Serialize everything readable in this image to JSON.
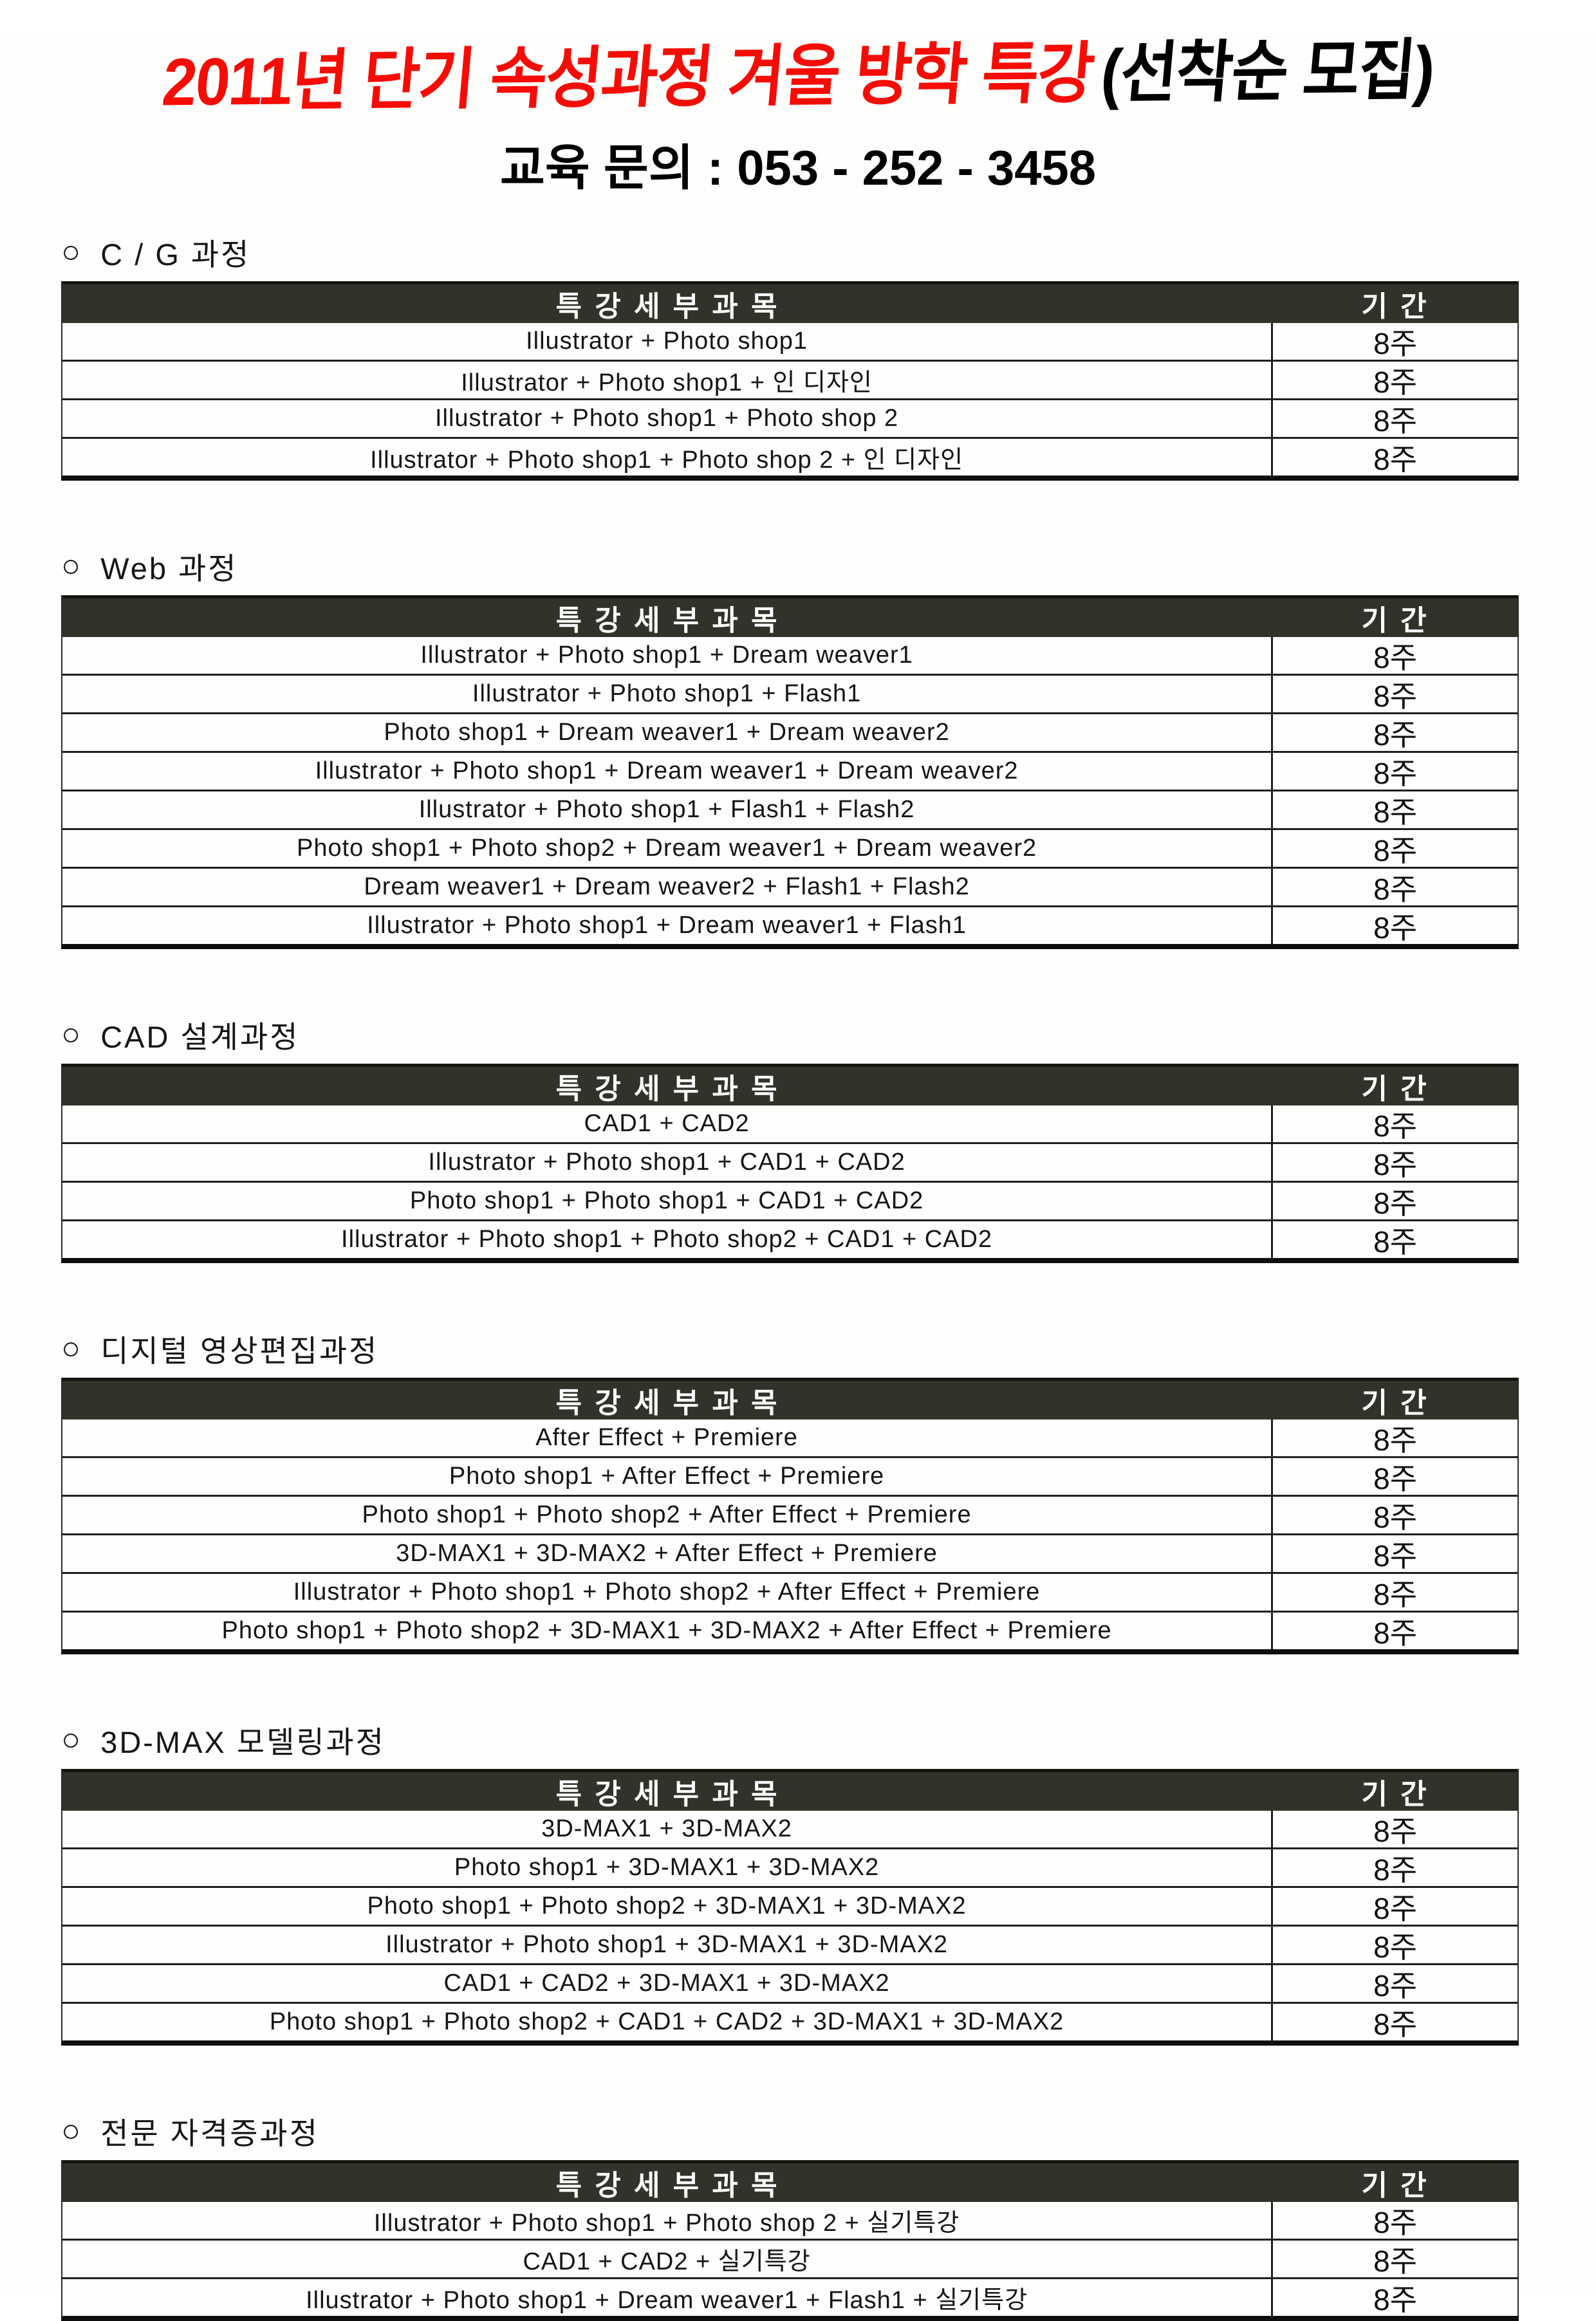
{
  "title": {
    "red": "2011년 단기 속성과정 겨울 방학 특강",
    "black": "(선착순 모집)"
  },
  "contact": "교육 문의 : 053 - 252 - 3458",
  "bullet": "○",
  "table_header": {
    "subject": "특 강 세 부 과 목",
    "period": "기 간"
  },
  "colors": {
    "title_red": "#f50d05",
    "header_bar_bg": "#32312a",
    "header_bar_text": "#ffffff",
    "body_text": "#151515",
    "rule_lines": "#1f1f1f"
  },
  "sections": [
    {
      "heading": "C / G 과정",
      "rows": [
        {
          "subject": "Illustrator + Photo shop1",
          "period": "8주"
        },
        {
          "subject": "Illustrator + Photo shop1 + 인 디자인",
          "period": "8주"
        },
        {
          "subject": "Illustrator + Photo shop1 + Photo shop 2",
          "period": "8주"
        },
        {
          "subject": "Illustrator + Photo shop1 + Photo shop 2 + 인 디자인",
          "period": "8주"
        }
      ]
    },
    {
      "heading": "Web 과정",
      "rows": [
        {
          "subject": "Illustrator + Photo shop1 + Dream weaver1",
          "period": "8주"
        },
        {
          "subject": "Illustrator + Photo shop1 + Flash1",
          "period": "8주"
        },
        {
          "subject": "Photo shop1 + Dream weaver1 + Dream weaver2",
          "period": "8주"
        },
        {
          "subject": "Illustrator + Photo shop1 + Dream weaver1 + Dream weaver2",
          "period": "8주"
        },
        {
          "subject": "Illustrator + Photo shop1 + Flash1 + Flash2",
          "period": "8주"
        },
        {
          "subject": "Photo shop1 + Photo shop2 + Dream weaver1 + Dream weaver2",
          "period": "8주"
        },
        {
          "subject": "Dream weaver1 + Dream weaver2 + Flash1 + Flash2",
          "period": "8주"
        },
        {
          "subject": "Illustrator + Photo shop1 + Dream weaver1 + Flash1",
          "period": "8주"
        }
      ]
    },
    {
      "heading": "CAD 설계과정",
      "rows": [
        {
          "subject": "CAD1 + CAD2",
          "period": "8주"
        },
        {
          "subject": "Illustrator + Photo shop1 + CAD1 + CAD2",
          "period": "8주"
        },
        {
          "subject": "Photo shop1 + Photo shop1 + CAD1 + CAD2",
          "period": "8주"
        },
        {
          "subject": "Illustrator + Photo shop1 + Photo shop2 + CAD1 + CAD2",
          "period": "8주"
        }
      ]
    },
    {
      "heading": "디지털 영상편집과정",
      "rows": [
        {
          "subject": "After Effect + Premiere",
          "period": "8주"
        },
        {
          "subject": "Photo shop1 + After Effect + Premiere",
          "period": "8주"
        },
        {
          "subject": "Photo shop1 + Photo shop2 + After Effect + Premiere",
          "period": "8주"
        },
        {
          "subject": "3D-MAX1 + 3D-MAX2 + After Effect + Premiere",
          "period": "8주"
        },
        {
          "subject": "Illustrator + Photo shop1 + Photo shop2 + After Effect + Premiere",
          "period": "8주"
        },
        {
          "subject": "Photo shop1 + Photo shop2 + 3D-MAX1 + 3D-MAX2 + After Effect + Premiere",
          "period": "8주"
        }
      ]
    },
    {
      "heading": "3D-MAX 모델링과정",
      "rows": [
        {
          "subject": "3D-MAX1 + 3D-MAX2",
          "period": "8주"
        },
        {
          "subject": "Photo shop1 + 3D-MAX1 + 3D-MAX2",
          "period": "8주"
        },
        {
          "subject": "Photo shop1 + Photo shop2 + 3D-MAX1 + 3D-MAX2",
          "period": "8주"
        },
        {
          "subject": "Illustrator + Photo shop1 + 3D-MAX1 + 3D-MAX2",
          "period": "8주"
        },
        {
          "subject": "CAD1 + CAD2 + 3D-MAX1 + 3D-MAX2",
          "period": "8주"
        },
        {
          "subject": "Photo shop1 + Photo shop2 + CAD1 + CAD2 + 3D-MAX1 + 3D-MAX2",
          "period": "8주"
        }
      ]
    },
    {
      "heading": "전문 자격증과정",
      "rows": [
        {
          "subject": "Illustrator + Photo shop1 + Photo shop 2 + 실기특강",
          "period": "8주"
        },
        {
          "subject": "CAD1 + CAD2 + 실기특강",
          "period": "8주"
        },
        {
          "subject": "Illustrator + Photo shop1 + Dream weaver1 + Flash1 + 실기특강",
          "period": "8주"
        }
      ]
    }
  ]
}
